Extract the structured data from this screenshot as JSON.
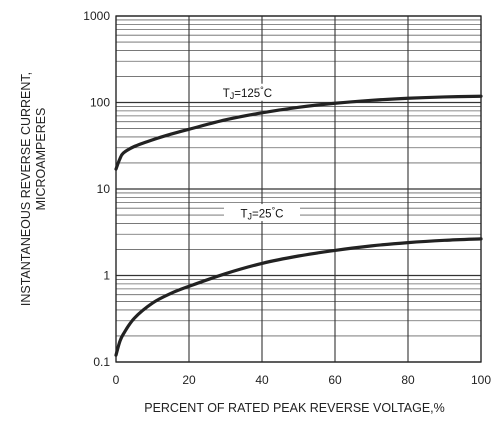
{
  "chart_data": {
    "type": "line",
    "title": "",
    "xlabel": "PERCENT OF RATED PEAK REVERSE VOLTAGE,%",
    "ylabel_lines": [
      "INSTANTANEOUS REVERSE CURRENT,",
      "MICROAMPERES"
    ],
    "xlim": [
      0,
      100
    ],
    "ylim": [
      0.1,
      1000
    ],
    "y_scale": "log",
    "grid": true,
    "x_ticks": [
      0,
      20,
      40,
      60,
      80,
      100
    ],
    "y_ticks": [
      0.1,
      1,
      10,
      100,
      1000
    ],
    "x_tick_labels": [
      "0",
      "20",
      "40",
      "60",
      "80",
      "100"
    ],
    "y_tick_labels": [
      "0.1",
      "1",
      "10",
      "100",
      "1000"
    ],
    "series": [
      {
        "name": "TJ=125°C",
        "color": "#222222",
        "x": [
          0,
          1,
          2,
          5,
          10,
          15,
          20,
          30,
          40,
          50,
          60,
          70,
          80,
          90,
          100
        ],
        "y": [
          17,
          22,
          26,
          31,
          37,
          43,
          49,
          63,
          76,
          88,
          98,
          106,
          112,
          116,
          118
        ]
      },
      {
        "name": "TJ=25°C",
        "color": "#222222",
        "x": [
          0,
          1,
          2,
          5,
          10,
          15,
          20,
          30,
          40,
          50,
          60,
          70,
          80,
          90,
          100
        ],
        "y": [
          0.12,
          0.17,
          0.21,
          0.32,
          0.48,
          0.62,
          0.75,
          1.05,
          1.38,
          1.68,
          1.95,
          2.2,
          2.4,
          2.55,
          2.65
        ]
      }
    ],
    "annotations": [
      {
        "text_prefix": "T",
        "text_sub": "J",
        "text_suffix": "=125",
        "text_deg": "°",
        "text_unit": "C",
        "x": 36,
        "y": 128
      },
      {
        "text_prefix": "T",
        "text_sub": "J",
        "text_suffix": "=25",
        "text_deg": "°",
        "text_unit": "C",
        "x": 40,
        "y": 5.2
      }
    ]
  }
}
